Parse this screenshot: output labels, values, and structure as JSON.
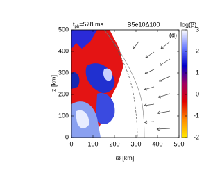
{
  "chart_data": {
    "type": "heatmap",
    "time_symbol": "t",
    "time_subscript": "pb",
    "time_value": "=578 ms",
    "model": "B5e10Δ100",
    "panel": "(d)",
    "xlabel": "ϖ [km]",
    "ylabel": "z [km]",
    "xlim": [
      0,
      500
    ],
    "ylim": [
      0,
      500
    ],
    "xticks": [
      0,
      100,
      200,
      300,
      400,
      500
    ],
    "yticks": [
      0,
      100,
      200,
      300,
      400,
      500
    ],
    "colorbar": {
      "label": "log(β)",
      "lim": [
        -2,
        3
      ],
      "ticks": [
        -2,
        -1,
        0,
        1,
        2,
        3
      ],
      "colors": [
        "#ffe800",
        "#ff8a00",
        "#e00000",
        "#a00060",
        "#0000c8",
        "#6a7cff",
        "#ffffff"
      ]
    }
  }
}
